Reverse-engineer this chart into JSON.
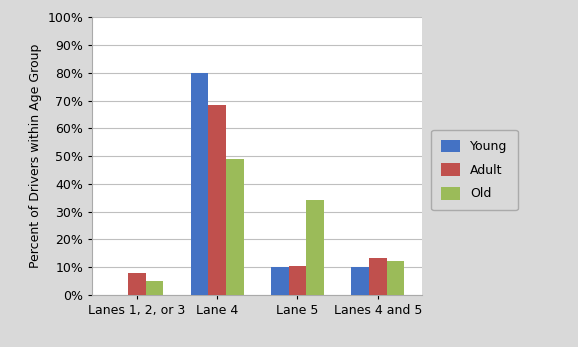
{
  "categories": [
    "Lanes 1, 2, or 3",
    "Lane 4",
    "Lane 5",
    "Lanes 4 and 5"
  ],
  "series": {
    "Young": [
      0.0,
      80.0,
      10.0,
      10.0
    ],
    "Adult": [
      7.9,
      68.4,
      10.5,
      13.2
    ],
    "Old": [
      4.9,
      48.8,
      34.1,
      12.2
    ]
  },
  "colors": {
    "Young": "#4472C4",
    "Adult": "#C0504D",
    "Old": "#9BBB59"
  },
  "ylabel": "Percent of Drivers within Age Group",
  "ylim": [
    0,
    100
  ],
  "yticks": [
    0,
    10,
    20,
    30,
    40,
    50,
    60,
    70,
    80,
    90,
    100
  ],
  "ytick_labels": [
    "0%",
    "10%",
    "20%",
    "30%",
    "40%",
    "50%",
    "60%",
    "70%",
    "80%",
    "90%",
    "100%"
  ],
  "figure_background_color": "#D9D9D9",
  "plot_background_color": "#FFFFFF",
  "grid_color": "#BFBFBF",
  "bar_width": 0.22,
  "legend_order": [
    "Young",
    "Adult",
    "Old"
  ],
  "legend_fontsize": 9,
  "axis_fontsize": 9,
  "ylabel_fontsize": 9
}
